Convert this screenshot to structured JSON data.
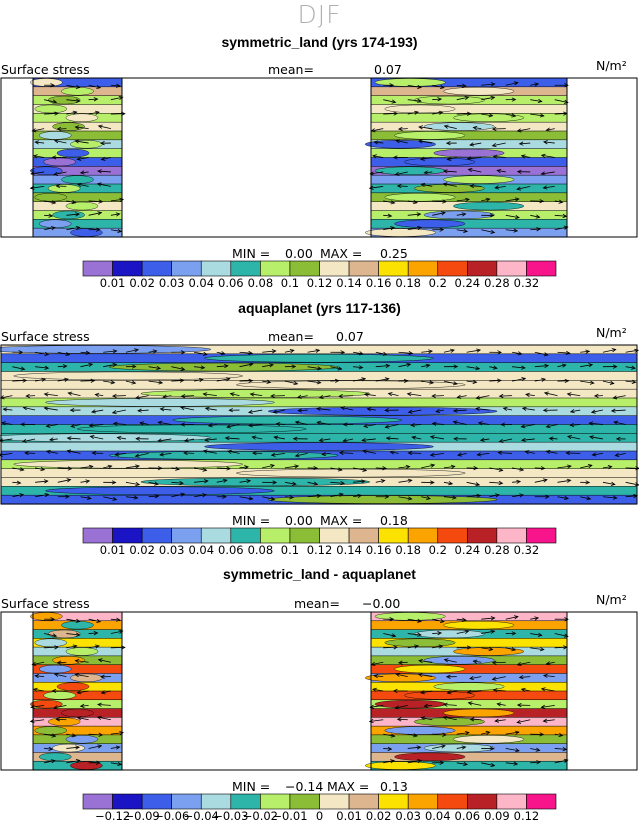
{
  "header": {
    "title": "DJF"
  },
  "colorbar_labels": {
    "main": [
      "0.01",
      "0.02",
      "0.03",
      "0.04",
      "0.06",
      "0.08",
      "0.1",
      "0.12",
      "0.14",
      "0.16",
      "0.18",
      "0.2",
      "0.24",
      "0.28",
      "0.32"
    ],
    "diff": [
      "−0.12",
      "−0.09",
      "−0.06",
      "−0.04",
      "−0.03",
      "−0.02",
      "−0.01",
      "0",
      "0.01",
      "0.02",
      "0.03",
      "0.04",
      "0.06",
      "0.09",
      "0.12"
    ]
  },
  "palette": [
    "#9a72d6",
    "#1a14c4",
    "#3c5ee8",
    "#7ba0ef",
    "#a9dbe0",
    "#2cb5a8",
    "#b8ef6a",
    "#8cbd37",
    "#f3e7c4",
    "#ddb58f",
    "#fbe200",
    "#fba400",
    "#f44a10",
    "#b82226",
    "#fdb6c8",
    "#f8148b"
  ],
  "panels": [
    {
      "title": "symmetric_land (yrs 174-193)",
      "field_label": "Surface stress",
      "mean_label": "mean=",
      "mean_value": "0.07",
      "units": "N/m²",
      "min_label": "MIN =",
      "min_value": "0.00",
      "max_label": "MAX =",
      "max_value": "0.25",
      "land": true
    },
    {
      "title": "aquaplanet (yrs 117-136)",
      "field_label": "Surface stress",
      "mean_label": "mean=",
      "mean_value": "0.07",
      "units": "N/m²",
      "min_label": "MIN =",
      "min_value": "0.00",
      "max_label": "MAX =",
      "max_value": "0.18",
      "land": false
    },
    {
      "title": "symmetric_land - aquaplanet",
      "field_label": "Surface stress",
      "mean_label": "mean=",
      "mean_value": "−0.00",
      "units": "N/m²",
      "min_label": "MIN =",
      "min_value": "−0.14",
      "max_label": "MAX =",
      "max_value": "0.13",
      "land": true
    }
  ],
  "chart_data": [
    {
      "type": "heatmap",
      "title": "symmetric_land (yrs 174-193)",
      "variable": "Surface stress",
      "units": "N/m²",
      "mean": 0.07,
      "min": 0.0,
      "max": 0.25,
      "levels": [
        0.01,
        0.02,
        0.03,
        0.04,
        0.06,
        0.08,
        0.1,
        0.12,
        0.14,
        0.16,
        0.18,
        0.2,
        0.24,
        0.28,
        0.32
      ],
      "latitude_band_values": [
        0.02,
        0.15,
        0.09,
        0.12,
        0.08,
        0.13,
        0.1,
        0.05,
        0.09,
        0.02,
        0.0,
        0.03,
        0.07,
        0.1,
        0.12,
        0.08,
        0.06,
        0.03
      ],
      "overlay": "wind stress vectors"
    },
    {
      "type": "heatmap",
      "title": "aquaplanet (yrs 117-136)",
      "variable": "Surface stress",
      "units": "N/m²",
      "mean": 0.07,
      "min": 0.0,
      "max": 0.18,
      "levels": [
        0.01,
        0.02,
        0.03,
        0.04,
        0.06,
        0.08,
        0.1,
        0.12,
        0.14,
        0.16,
        0.18,
        0.2,
        0.24,
        0.28,
        0.32
      ],
      "latitude_band_values": [
        0.13,
        0.02,
        0.07,
        0.12,
        0.13,
        0.13,
        0.08,
        0.05,
        0.02,
        0.07,
        0.07,
        0.04,
        0.02,
        0.08,
        0.13,
        0.12,
        0.06,
        0.02
      ],
      "overlay": "wind stress vectors"
    },
    {
      "type": "heatmap",
      "title": "symmetric_land - aquaplanet",
      "variable": "Surface stress",
      "units": "N/m²",
      "mean": -0.0,
      "min": -0.14,
      "max": 0.13,
      "levels": [
        -0.12,
        -0.09,
        -0.06,
        -0.04,
        -0.03,
        -0.02,
        -0.01,
        0,
        0.01,
        0.02,
        0.03,
        0.04,
        0.06,
        0.09,
        0.12
      ],
      "latitude_band_values": [
        0.09,
        0.03,
        -0.03,
        0.02,
        -0.04,
        -0.01,
        0.04,
        -0.06,
        0.02,
        0.05,
        -0.02,
        0.06,
        0.09,
        0.03,
        -0.01,
        -0.05,
        0.01,
        -0.03
      ],
      "overlay": "wind stress vectors"
    }
  ]
}
